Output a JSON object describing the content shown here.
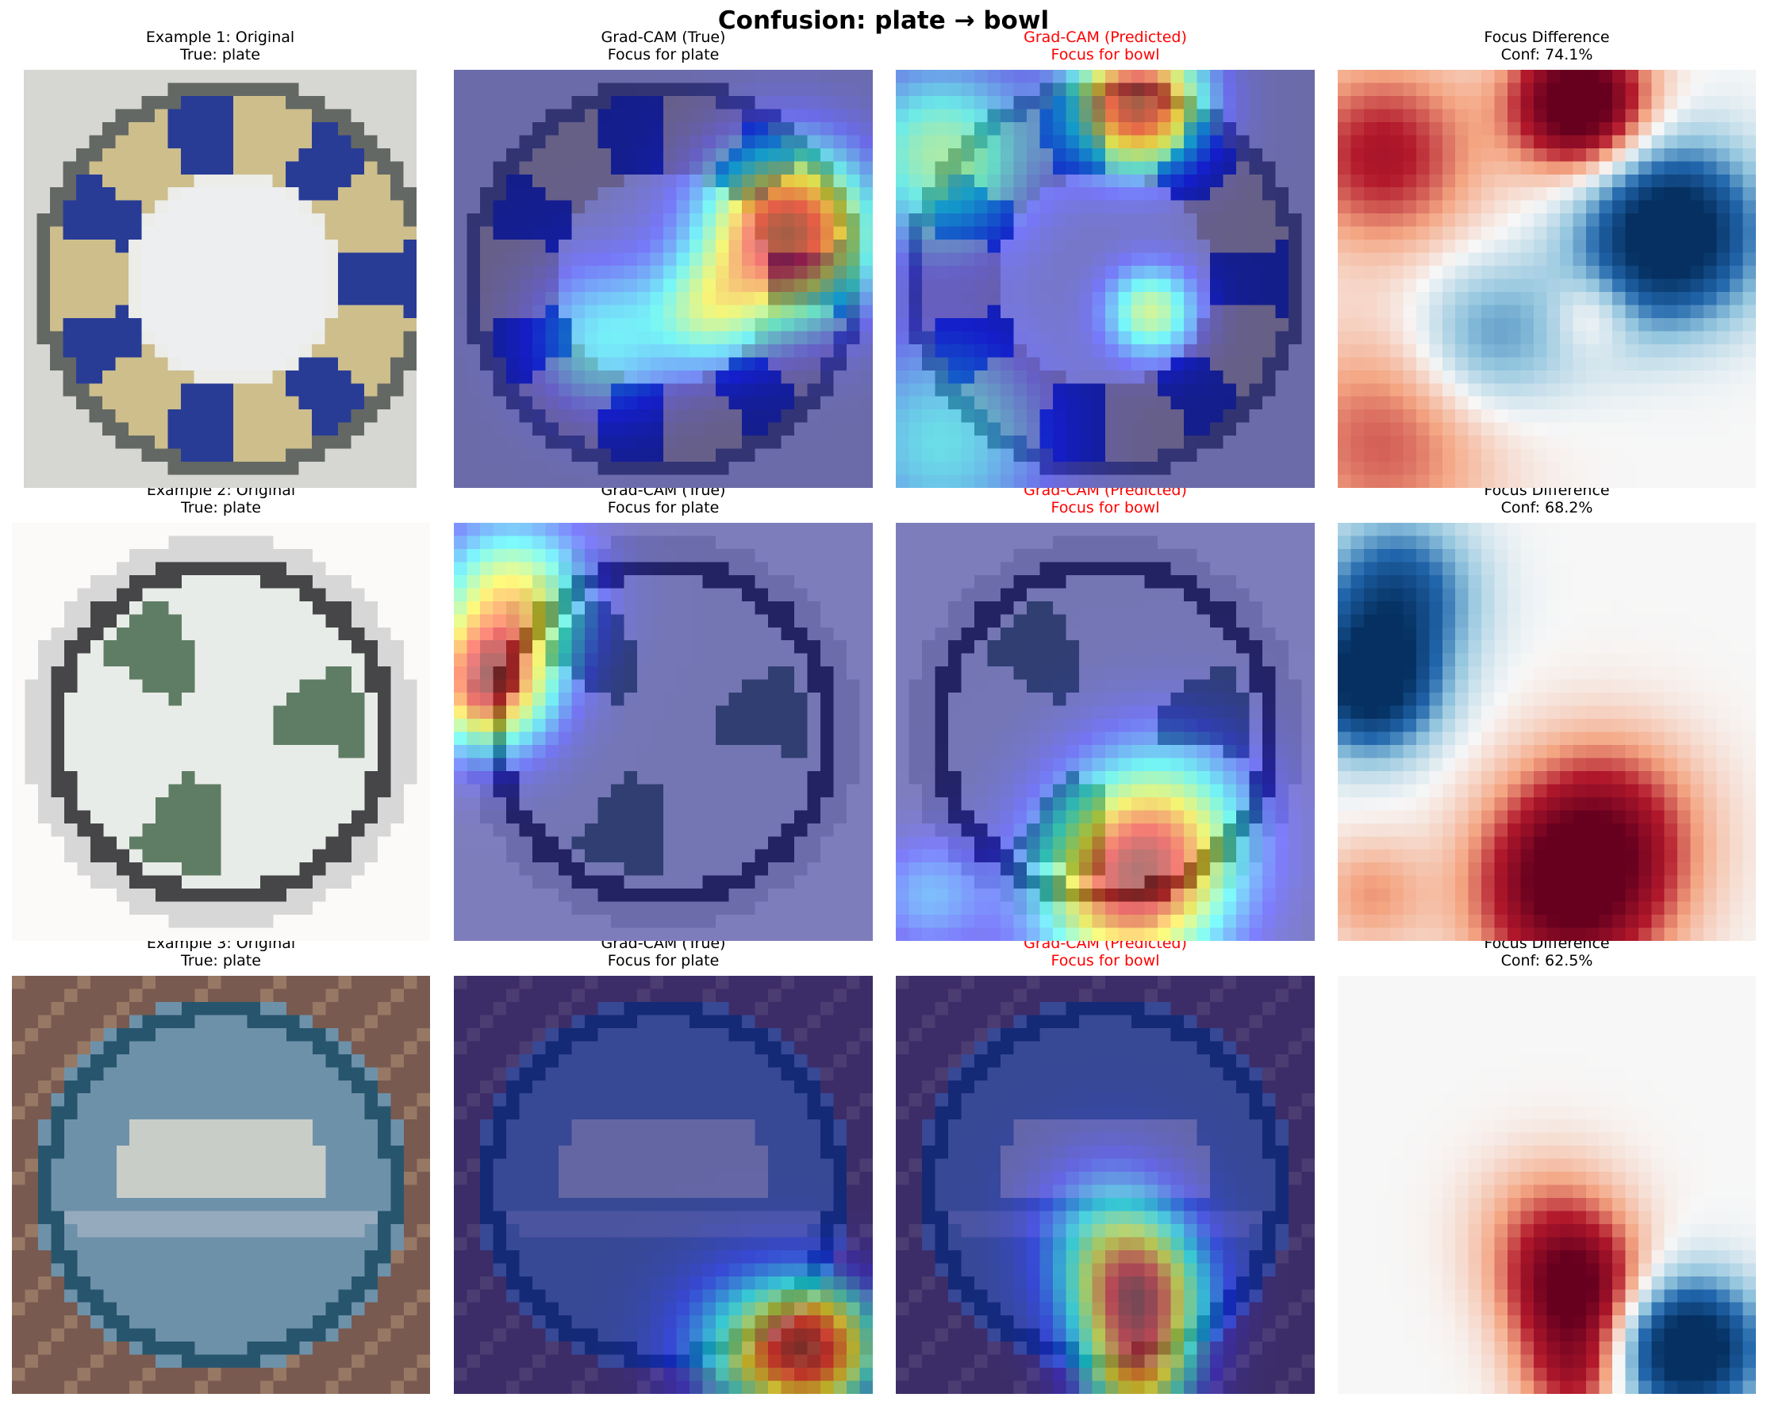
{
  "figure": {
    "title": "Confusion: plate → bowl"
  },
  "rows": [
    {
      "original": {
        "line1": "Example 1: Original",
        "line2": "True: plate"
      },
      "true_cam": {
        "line1": "Grad-CAM (True)",
        "line2": "Focus for plate"
      },
      "pred_cam": {
        "line1": "Grad-CAM (Predicted)",
        "line2": "Focus for bowl"
      },
      "diff": {
        "line1": "Focus Difference",
        "line2": "Conf: 74.1%"
      }
    },
    {
      "original": {
        "line1": "Example 2: Original",
        "line2": "True: plate"
      },
      "true_cam": {
        "line1": "Grad-CAM (True)",
        "line2": "Focus for plate"
      },
      "pred_cam": {
        "line1": "Grad-CAM (Predicted)",
        "line2": "Focus for bowl"
      },
      "diff": {
        "line1": "Focus Difference",
        "line2": "Conf: 68.2%"
      }
    },
    {
      "original": {
        "line1": "Example 3: Original",
        "line2": "True: plate"
      },
      "true_cam": {
        "line1": "Grad-CAM (True)",
        "line2": "Focus for plate"
      },
      "pred_cam": {
        "line1": "Grad-CAM (Predicted)",
        "line2": "Focus for bowl"
      },
      "diff": {
        "line1": "Focus Difference",
        "line2": "Conf: 62.5%"
      }
    }
  ],
  "colors": {
    "predicted_title": "#ff0000",
    "heat_cold": "#00008f",
    "heat_hot": "#800000",
    "diff_negative": "#053061",
    "diff_positive": "#67001f"
  }
}
